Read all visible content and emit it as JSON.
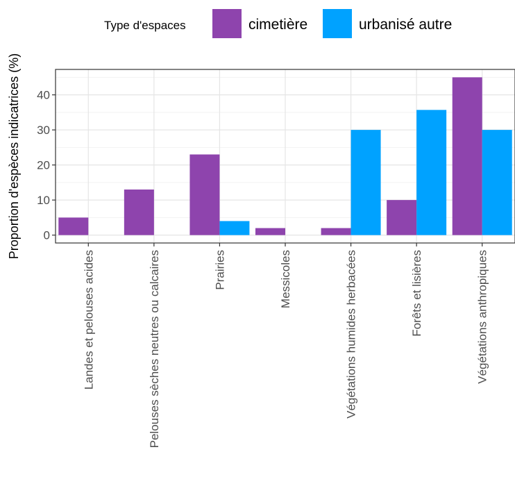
{
  "chart_data": {
    "type": "bar",
    "title": "",
    "xlabel": "",
    "ylabel": "Proportion d'espèces indicatrices (%)",
    "ylim": [
      -2.25,
      47.25
    ],
    "yticks": [
      0,
      10,
      20,
      30,
      40
    ],
    "grid": true,
    "legend": {
      "title": "Type d'espaces",
      "position": "top"
    },
    "categories": [
      "Landes et pelouses acides",
      "Pelouses sèches neutres ou calcaires",
      "Prairies",
      "Messicoles",
      "Végétations humides herbacées",
      "Forêts et lisières",
      "Végétations anthropiques"
    ],
    "series": [
      {
        "name": "cimetière",
        "color": "#8e44ad",
        "values": [
          5,
          13,
          23,
          2,
          2,
          10,
          45
        ]
      },
      {
        "name": "urbanisé autre",
        "color": "#00a2ff",
        "values": [
          0,
          0,
          4,
          0,
          30,
          35.7,
          30
        ]
      }
    ]
  }
}
